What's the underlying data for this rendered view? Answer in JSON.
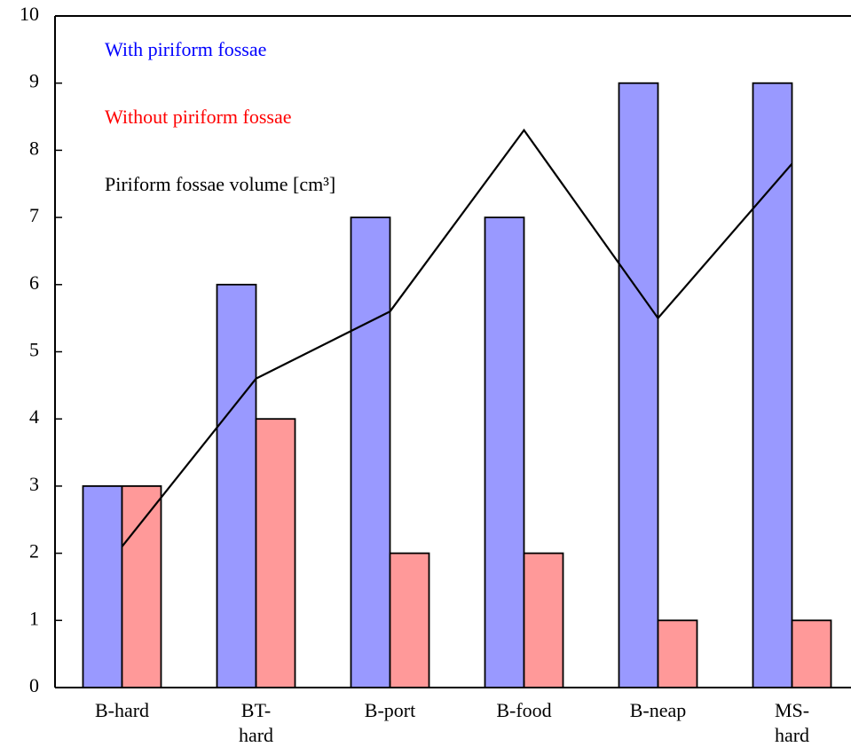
{
  "chart_data": {
    "type": "bar",
    "categories": [
      "B-hard",
      "BT-\nhard",
      "B-port",
      "B-food",
      "B-neap",
      "MS-\nhard"
    ],
    "series": [
      {
        "name": "With piriform fossae",
        "type": "bar",
        "color": "#9999ff",
        "label_color": "#0000ff",
        "values": [
          3,
          6,
          7,
          7,
          9,
          9
        ]
      },
      {
        "name": "Without piriform fossae",
        "type": "bar",
        "color": "#ff9999",
        "label_color": "#ff0000",
        "values": [
          3,
          4,
          2,
          2,
          1,
          1
        ]
      },
      {
        "name": "Piriform fossae volume [cm³]",
        "type": "line",
        "color": "#000000",
        "label_color": "#000000",
        "values": [
          2.1,
          4.6,
          5.6,
          8.3,
          5.5,
          7.8
        ]
      }
    ],
    "ylim": [
      0,
      10
    ],
    "yticks": [
      0,
      1,
      2,
      3,
      4,
      5,
      6,
      7,
      8,
      9,
      10
    ],
    "grid": false,
    "legend": "upper left"
  }
}
